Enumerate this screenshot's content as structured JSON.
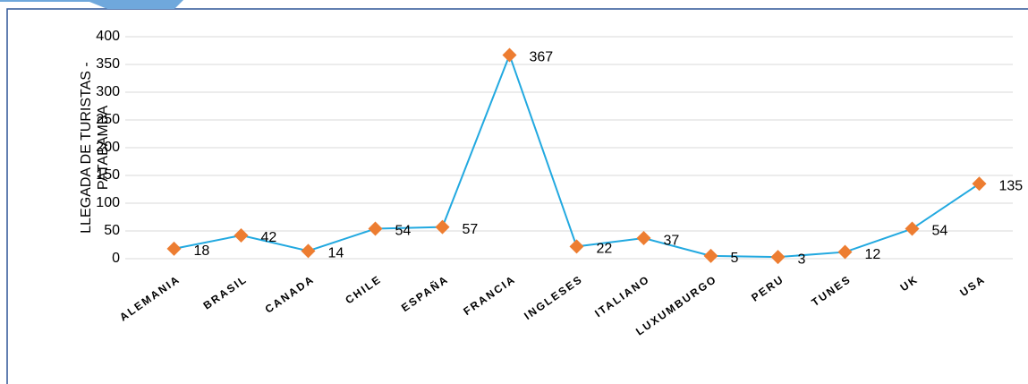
{
  "chart_data": {
    "type": "line",
    "y_label": "LLEGADA DE TURISTAS - PATABAMBA",
    "categories": [
      "ALEMANIA",
      "BRASIL",
      "CANADA",
      "CHILE",
      "ESPAÑA",
      "FRANCIA",
      "INGLESES",
      "ITALIANO",
      "LUXUMBURGO",
      "PERU",
      "TUNES",
      "UK",
      "USA"
    ],
    "series": [
      {
        "name": "Llegada de turistas",
        "color": "#22a9e0",
        "marker_color": "#ed7d31",
        "values": [
          18,
          42,
          14,
          54,
          57,
          367,
          22,
          37,
          5,
          3,
          12,
          54,
          135
        ]
      }
    ],
    "ylim": [
      0,
      400
    ],
    "yticks": [
      0,
      50,
      100,
      150,
      200,
      250,
      300,
      350,
      400
    ],
    "grid": true
  }
}
